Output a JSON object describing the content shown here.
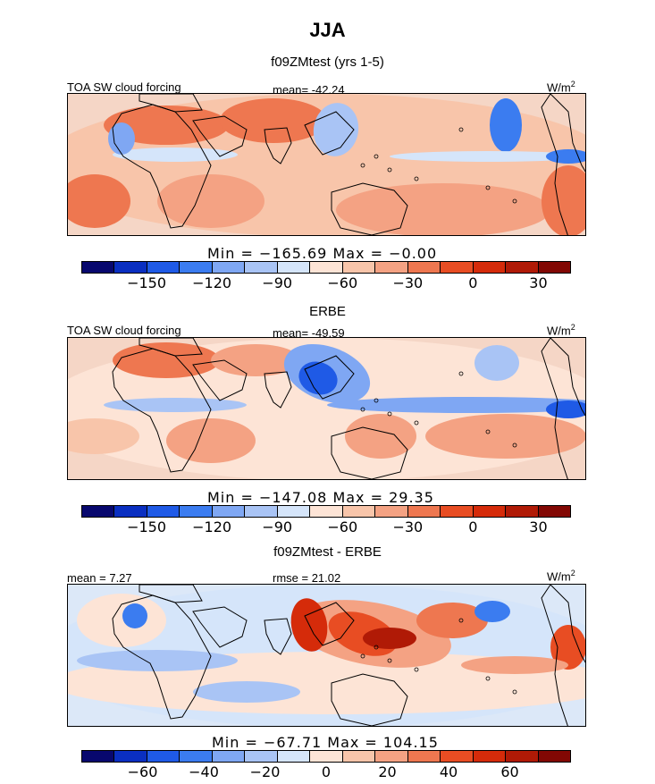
{
  "figure": {
    "title": "JJA"
  },
  "colors": {
    "diverging_levels": [
      "#08086e",
      "#0a2fc1",
      "#1f5ae6",
      "#3b7cf0",
      "#7fa7f3",
      "#a9c4f5",
      "#d5e5fa",
      "#fde4d6",
      "#f8c5aa",
      "#f4a283",
      "#ee7750",
      "#e84d23",
      "#d52b0a",
      "#b01a06",
      "#820804"
    ],
    "coast": "#000000"
  },
  "chart_data": [
    {
      "type": "heatmap",
      "title": "f09ZMtest (yrs 1-5)",
      "variable": "TOA SW cloud forcing",
      "units": "W/m2",
      "stats": {
        "left": "",
        "center": "mean= -42.24"
      },
      "range_text": "Min = −165.69 Max =  −0.00",
      "min": -165.69,
      "max": -0.0,
      "mean": -42.24,
      "colorbar_ticks": [
        "−150",
        "−120",
        "−90",
        "−60",
        "−30",
        "0",
        "30"
      ],
      "colorbar_tick_values": [
        -150,
        -120,
        -90,
        -60,
        -30,
        0,
        30
      ],
      "colorbar_range": [
        -180,
        45
      ]
    },
    {
      "type": "heatmap",
      "title": "ERBE",
      "variable": "TOA SW cloud forcing",
      "units": "W/m2",
      "stats": {
        "left": "",
        "center": "mean= -49.59"
      },
      "range_text": "Min = −147.08 Max =  29.35",
      "min": -147.08,
      "max": 29.35,
      "mean": -49.59,
      "colorbar_ticks": [
        "−150",
        "−120",
        "−90",
        "−60",
        "−30",
        "0",
        "30"
      ],
      "colorbar_tick_values": [
        -150,
        -120,
        -90,
        -60,
        -30,
        0,
        30
      ],
      "colorbar_range": [
        -180,
        45
      ]
    },
    {
      "type": "heatmap",
      "title": "f09ZMtest - ERBE",
      "variable": "",
      "units": "W/m2",
      "stats": {
        "left": "mean =   7.27",
        "center": "rmse =  21.02"
      },
      "range_text": "Min = −67.71 Max = 104.15",
      "min": -67.71,
      "max": 104.15,
      "mean": 7.27,
      "rmse": 21.02,
      "colorbar_ticks": [
        "−60",
        "−40",
        "−20",
        "0",
        "20",
        "40",
        "60"
      ],
      "colorbar_tick_values": [
        -60,
        -40,
        -20,
        0,
        20,
        40,
        60
      ],
      "colorbar_range": [
        -80,
        80
      ]
    }
  ]
}
